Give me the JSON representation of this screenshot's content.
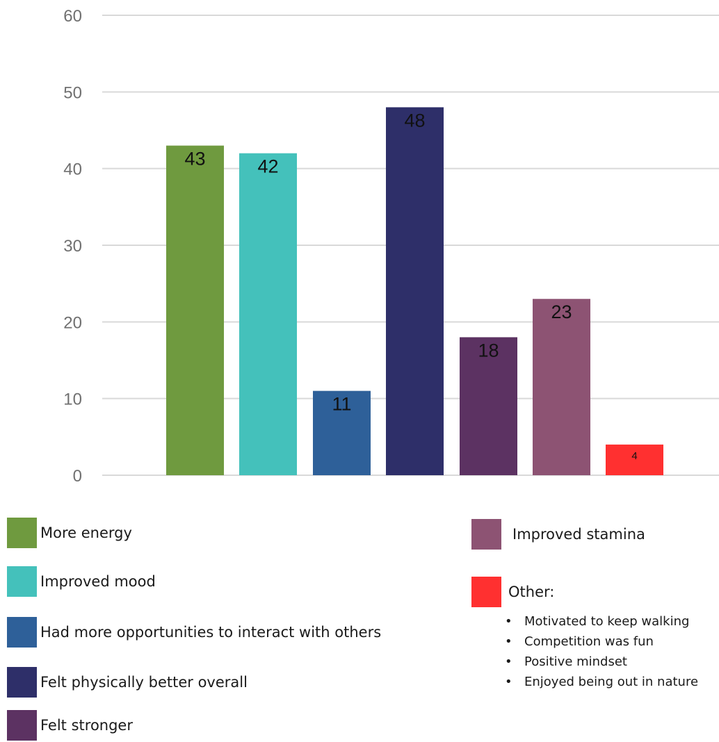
{
  "chart_data": {
    "type": "bar",
    "ylim": [
      0,
      60
    ],
    "yticks": [
      "0",
      "10",
      "20",
      "30",
      "40",
      "50",
      "60"
    ],
    "grid": true,
    "categories": [
      "More energy",
      "Improved mood",
      "Had more opportunities to interact with others",
      "Felt physically better overall",
      "Felt stronger",
      "Improved stamina",
      "Other:"
    ],
    "values": [
      43,
      42,
      11,
      48,
      18,
      23,
      4
    ],
    "value_labels": [
      "43",
      "42",
      "11",
      "48",
      "18",
      "23",
      "4"
    ],
    "colors": [
      "#6F9A3F",
      "#44C1BB",
      "#2E6099",
      "#2E2F69",
      "#5C3262",
      "#8D5373",
      "#FF3030"
    ],
    "legend_placement": "bottom",
    "other_notes": [
      "Motivated to keep walking",
      "Competition was fun",
      "Positive mindset",
      "Enjoyed being out in nature"
    ]
  }
}
